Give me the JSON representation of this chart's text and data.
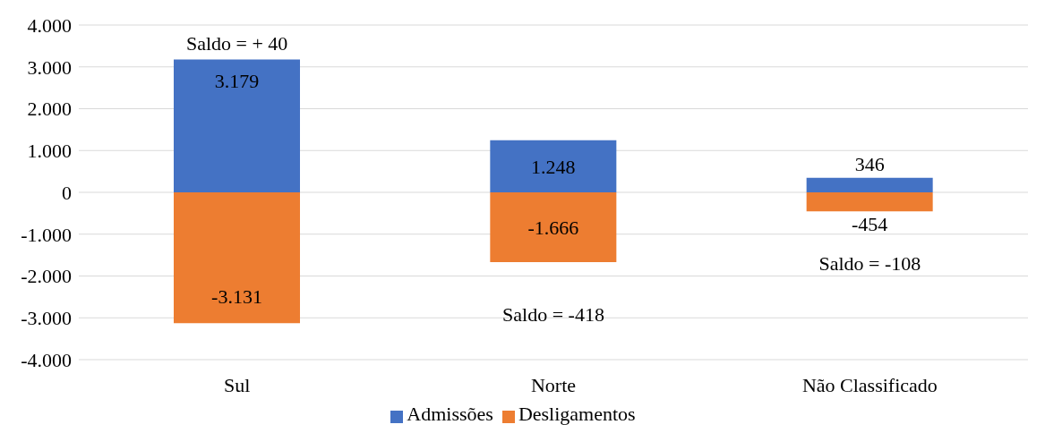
{
  "chart_data": {
    "type": "bar",
    "stacked": true,
    "categories": [
      "Sul",
      "Norte",
      "Não Classificado"
    ],
    "series": [
      {
        "name": "Admissões",
        "color": "#4472c4",
        "values": [
          3179,
          1248,
          346
        ],
        "value_labels": [
          "3.179",
          "1.248",
          "346"
        ]
      },
      {
        "name": "Desligamentos",
        "color": "#ed7d31",
        "values": [
          -3131,
          -1666,
          -454
        ],
        "value_labels": [
          "-3.131",
          "-1.666",
          "-454"
        ]
      }
    ],
    "ylim": [
      -4000,
      4000
    ],
    "yticks": [
      {
        "value": -4000,
        "label": "-4.000"
      },
      {
        "value": -3000,
        "label": "-3.000"
      },
      {
        "value": -2000,
        "label": "-2.000"
      },
      {
        "value": -1000,
        "label": "-1.000"
      },
      0,
      {
        "value": 1000,
        "label": "1.000"
      },
      {
        "value": 2000,
        "label": "2.000"
      },
      {
        "value": 3000,
        "label": "3.000"
      },
      {
        "value": 4000,
        "label": "4.000"
      }
    ],
    "grid": "y",
    "legend": "bottom",
    "annotations": [
      "Saldo = + 40",
      "Saldo = -418",
      "Saldo = -108"
    ]
  }
}
